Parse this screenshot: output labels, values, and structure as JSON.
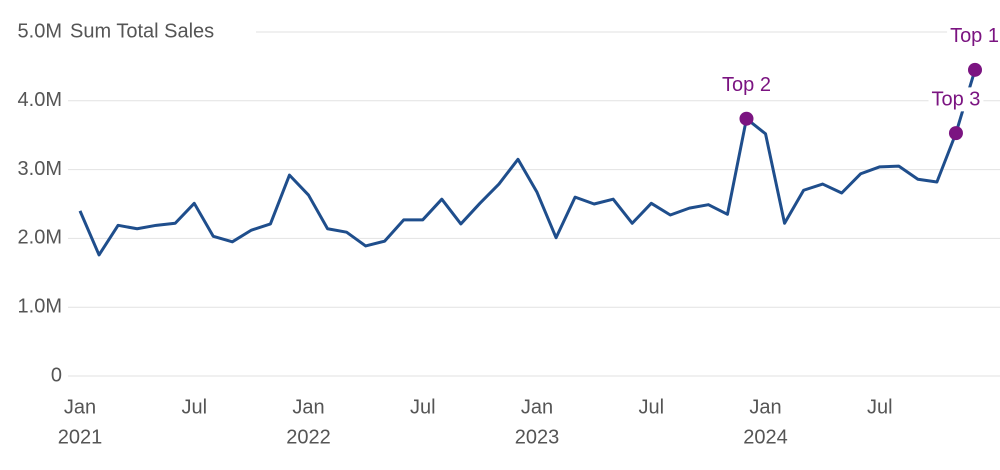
{
  "chart_data": {
    "type": "line",
    "y_title": "Sum Total Sales",
    "x": [
      "2021-01",
      "2021-02",
      "2021-03",
      "2021-04",
      "2021-05",
      "2021-06",
      "2021-07",
      "2021-08",
      "2021-09",
      "2021-10",
      "2021-11",
      "2021-12",
      "2022-01",
      "2022-02",
      "2022-03",
      "2022-04",
      "2022-05",
      "2022-06",
      "2022-07",
      "2022-08",
      "2022-09",
      "2022-10",
      "2022-11",
      "2022-12",
      "2023-01",
      "2023-02",
      "2023-03",
      "2023-04",
      "2023-05",
      "2023-06",
      "2023-07",
      "2023-08",
      "2023-09",
      "2023-10",
      "2023-11",
      "2023-12",
      "2024-01",
      "2024-02",
      "2024-03",
      "2024-04",
      "2024-05",
      "2024-06",
      "2024-07",
      "2024-08",
      "2024-09",
      "2024-10",
      "2024-11",
      "2024-12"
    ],
    "series": [
      {
        "name": "Sum Total Sales",
        "color": "#1f4e8c",
        "values": [
          2400000,
          1760000,
          2190000,
          2140000,
          2190000,
          2220000,
          2510000,
          2030000,
          1950000,
          2120000,
          2210000,
          2920000,
          2630000,
          2140000,
          2090000,
          1890000,
          1960000,
          2270000,
          2270000,
          2570000,
          2210000,
          2510000,
          2790000,
          3150000,
          2670000,
          2010000,
          2600000,
          2500000,
          2570000,
          2220000,
          2510000,
          2340000,
          2440000,
          2490000,
          2350000,
          3740000,
          3520000,
          2220000,
          2700000,
          2790000,
          2660000,
          2940000,
          3040000,
          3050000,
          2860000,
          2820000,
          3530000,
          4450000
        ]
      }
    ],
    "xlim": [
      "2021-01",
      "2024-12"
    ],
    "xticks": [
      {
        "value": "2021-01",
        "label": "Jan",
        "year": "2021"
      },
      {
        "value": "2021-07",
        "label": "Jul"
      },
      {
        "value": "2022-01",
        "label": "Jan",
        "year": "2022"
      },
      {
        "value": "2022-07",
        "label": "Jul"
      },
      {
        "value": "2023-01",
        "label": "Jan",
        "year": "2023"
      },
      {
        "value": "2023-07",
        "label": "Jul"
      },
      {
        "value": "2024-01",
        "label": "Jan",
        "year": "2024"
      },
      {
        "value": "2024-07",
        "label": "Jul"
      }
    ],
    "ylim": [
      0,
      5000000
    ],
    "yticks": [
      0,
      {
        "value": 1000000,
        "label": "1.0M"
      },
      {
        "value": 2000000,
        "label": "2.0M"
      },
      {
        "value": 3000000,
        "label": "3.0M"
      },
      {
        "value": 4000000,
        "label": "4.0M"
      },
      {
        "value": 5000000,
        "label": "5.0M"
      }
    ],
    "grid": true,
    "highlight_color": "#7b1481",
    "annotations": [
      {
        "text": "Top 1",
        "x": "2024-12"
      },
      {
        "text": "Top 2",
        "x": "2023-12"
      },
      {
        "text": "Top 3",
        "x": "2024-11"
      }
    ]
  }
}
